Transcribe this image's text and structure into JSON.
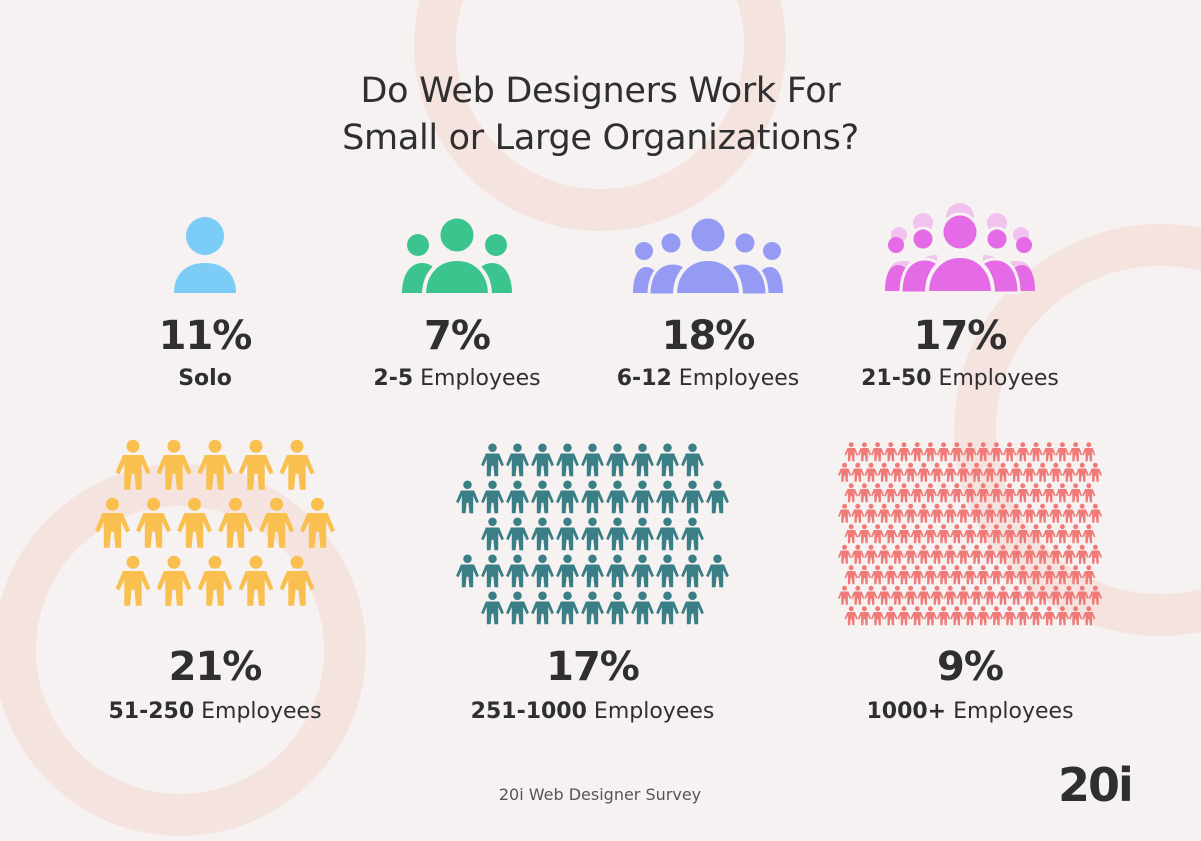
{
  "title": {
    "line1": "Do Web Designers Work For",
    "line2": "Small or Large Organizations?"
  },
  "colors": {
    "background": "#f7f2f2",
    "decor": "#f5e3df",
    "text": "#2f2f2f",
    "solo": "#7bcdf7",
    "team_2_5": "#3cc48e",
    "team_6_12": "#959bf5",
    "team_21_50": "#e46ae6",
    "crowd_51_250": "#f9c04f",
    "crowd_251_1000": "#3a7e86",
    "crowd_1000_plus": "#f07a78"
  },
  "categories": [
    {
      "id": "solo",
      "percent": "11%",
      "label_bold": "Solo",
      "label_rest": "",
      "icon": "single-person-icon"
    },
    {
      "id": "2-5",
      "percent": "7%",
      "label_bold": "2-5",
      "label_rest": " Employees",
      "icon": "small-group-icon"
    },
    {
      "id": "6-12",
      "percent": "18%",
      "label_bold": "6-12",
      "label_rest": " Employees",
      "icon": "group-icon"
    },
    {
      "id": "21-50",
      "percent": "17%",
      "label_bold": "21-50",
      "label_rest": " Employees",
      "icon": "large-group-icon"
    },
    {
      "id": "51-250",
      "percent": "21%",
      "label_bold": "51-250",
      "label_rest": " Employees",
      "icon": "crowd-icon"
    },
    {
      "id": "251-1000",
      "percent": "17%",
      "label_bold": "251-1000",
      "label_rest": " Employees",
      "icon": "large-crowd-icon"
    },
    {
      "id": "1000+",
      "percent": "9%",
      "label_bold": "1000+",
      "label_rest": " Employees",
      "icon": "huge-crowd-icon"
    }
  ],
  "source": "20i Web Designer Survey",
  "logo": "20i"
}
